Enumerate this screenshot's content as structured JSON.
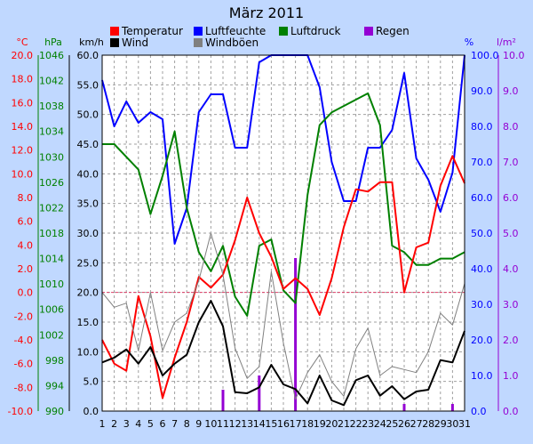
{
  "chart_data": {
    "type": "line",
    "title": "März 2011",
    "x": [
      1,
      2,
      3,
      4,
      5,
      6,
      7,
      8,
      9,
      10,
      11,
      12,
      13,
      14,
      15,
      16,
      17,
      18,
      19,
      20,
      21,
      22,
      23,
      24,
      25,
      26,
      27,
      28,
      29,
      30,
      31
    ],
    "legend": [
      {
        "label": "Temperatur",
        "color": "#ff0000"
      },
      {
        "label": "Wind",
        "color": "#000000"
      },
      {
        "label": "Luftfeuchte",
        "color": "#0000ff"
      },
      {
        "label": "Windböen",
        "color": "#808080"
      },
      {
        "label": "Luftdruck",
        "color": "#008000"
      },
      {
        "label": "Regen",
        "color": "#9400d3"
      }
    ],
    "axes": {
      "temperature": {
        "unit": "°C",
        "min": -10,
        "max": 20,
        "step": 2,
        "color": "#ff0000",
        "side": "left"
      },
      "pressure": {
        "unit": "hPa",
        "min": 990,
        "max": 1046,
        "step": 4,
        "color": "#008000",
        "side": "left"
      },
      "wind": {
        "unit": "km/h",
        "min": 0,
        "max": 60,
        "step": 5,
        "color": "#000000",
        "side": "left"
      },
      "humidity": {
        "unit": "%",
        "min": 0,
        "max": 100,
        "step": 10,
        "color": "#0000ff",
        "side": "right"
      },
      "rain": {
        "unit": "l/m²",
        "min": 0,
        "max": 10,
        "step": 1,
        "color": "#9400d3",
        "side": "right"
      }
    },
    "grid": true,
    "reference_line": {
      "axis": "temperature",
      "value": 0,
      "color": "#e0406a"
    },
    "series": [
      {
        "name": "Luftfeuchte",
        "axis": "humidity",
        "color": "#0000ff",
        "values": [
          93,
          80,
          87,
          81,
          84,
          82,
          47,
          57,
          84,
          89,
          89,
          74,
          74,
          98,
          100,
          100,
          100,
          100,
          91,
          70,
          59,
          59,
          74,
          74,
          79,
          95,
          71,
          65,
          56,
          67,
          100
        ]
      },
      {
        "name": "Luftdruck",
        "axis": "pressure",
        "color": "#008000",
        "values": [
          1032,
          1032,
          1030,
          1028,
          1021,
          1027,
          1034,
          1022,
          1015,
          1012,
          1016,
          1008,
          1005,
          1016,
          1017,
          1009,
          1007,
          1024,
          1035,
          1037,
          1038,
          1039,
          1040,
          1035,
          1016,
          1015,
          1013,
          1013,
          1014,
          1014,
          1015
        ]
      },
      {
        "name": "Temperatur",
        "axis": "temperature",
        "color": "#ff0000",
        "values": [
          -4.0,
          -6.0,
          -6.6,
          -0.3,
          -3.7,
          -8.9,
          -5.5,
          -2.5,
          1.3,
          0.4,
          1.5,
          4.4,
          8.0,
          5.0,
          3.0,
          0.3,
          1.2,
          0.3,
          -1.9,
          1.2,
          5.5,
          8.7,
          8.5,
          9.3,
          9.3,
          0.0,
          3.8,
          4.2,
          9.0,
          11.5,
          9.2
        ]
      },
      {
        "name": "Windböen",
        "axis": "wind",
        "color": "#808080",
        "values": [
          20.0,
          17.5,
          18.2,
          10.2,
          20.0,
          10.2,
          15.0,
          16.5,
          22.0,
          30.0,
          23.0,
          10.6,
          5.5,
          7.5,
          23.5,
          11.5,
          2.0,
          6.5,
          9.5,
          5.0,
          2.5,
          10.5,
          14.0,
          6.0,
          7.5,
          7.0,
          6.5,
          10.0,
          16.5,
          14.5,
          21.5
        ]
      },
      {
        "name": "Wind",
        "axis": "wind",
        "color": "#000000",
        "values": [
          8.2,
          9.0,
          10.4,
          8.0,
          10.8,
          6.0,
          8.0,
          9.5,
          15.0,
          18.6,
          14.3,
          3.2,
          3.0,
          4.0,
          7.8,
          4.5,
          3.7,
          1.3,
          6.0,
          1.8,
          1.0,
          5.2,
          6.0,
          2.6,
          4.2,
          2.0,
          3.3,
          3.6,
          8.6,
          8.2,
          13.5
        ]
      },
      {
        "name": "Regen",
        "axis": "rain",
        "color": "#9400d3",
        "kind": "bar",
        "values": [
          0,
          0,
          0,
          0,
          0,
          0,
          0,
          0,
          0,
          0,
          0.6,
          0,
          0,
          1.0,
          0,
          0,
          4.3,
          0,
          0,
          0,
          0,
          0,
          0,
          0,
          0,
          0.2,
          0,
          0,
          0,
          0.2,
          0
        ]
      }
    ]
  }
}
